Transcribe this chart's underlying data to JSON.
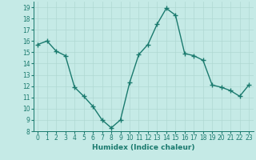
{
  "x": [
    0,
    1,
    2,
    3,
    4,
    5,
    6,
    7,
    8,
    9,
    10,
    11,
    12,
    13,
    14,
    15,
    16,
    17,
    18,
    19,
    20,
    21,
    22,
    23
  ],
  "y": [
    15.7,
    16.0,
    15.1,
    14.7,
    11.9,
    11.1,
    10.2,
    9.0,
    8.3,
    9.0,
    12.3,
    14.8,
    15.7,
    17.5,
    18.9,
    18.3,
    14.9,
    14.7,
    14.3,
    12.1,
    11.9,
    11.6,
    11.1,
    12.1
  ],
  "line_color": "#1a7a6e",
  "marker": "+",
  "marker_size": 4,
  "line_width": 1.0,
  "bg_color": "#c5eae6",
  "grid_color": "#b0d8d2",
  "xlabel": "Humidex (Indice chaleur)",
  "xlim": [
    -0.5,
    23.5
  ],
  "ylim": [
    8,
    19.5
  ],
  "yticks": [
    8,
    9,
    10,
    11,
    12,
    13,
    14,
    15,
    16,
    17,
    18,
    19
  ],
  "xticks": [
    0,
    1,
    2,
    3,
    4,
    5,
    6,
    7,
    8,
    9,
    10,
    11,
    12,
    13,
    14,
    15,
    16,
    17,
    18,
    19,
    20,
    21,
    22,
    23
  ],
  "tick_label_size": 5.5,
  "xlabel_size": 6.5
}
